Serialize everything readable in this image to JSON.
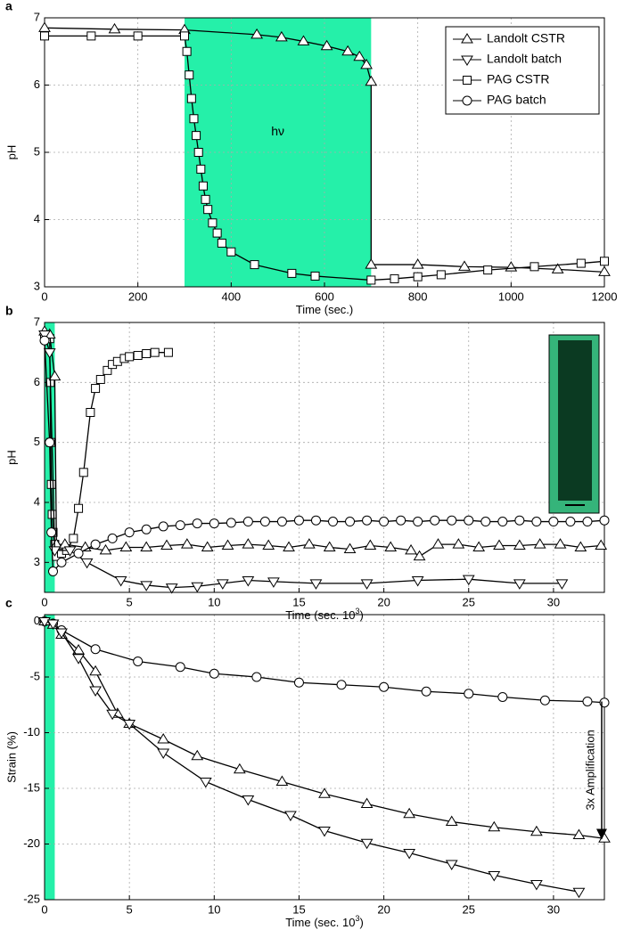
{
  "chart_data": [
    {
      "type": "line",
      "panel": "a",
      "xlabel": "Time (sec.)",
      "ylabel": "pH",
      "xlim": [
        0,
        1200
      ],
      "xticks": [
        0,
        200,
        400,
        600,
        800,
        1000,
        1200
      ],
      "ylim": [
        3,
        7
      ],
      "yticks": [
        3,
        4,
        5,
        6,
        7
      ],
      "grid": true,
      "band": [
        300,
        700
      ],
      "band_color": "#25f0a9",
      "annotation": {
        "text": "hν",
        "x": 500,
        "y": 5.3
      },
      "legend_position": "upper right",
      "legend": [
        {
          "name": "Landolt CSTR",
          "marker": "triangle-up"
        },
        {
          "name": "Landolt batch",
          "marker": "triangle-down"
        },
        {
          "name": "PAG CSTR",
          "marker": "square"
        },
        {
          "name": "PAG batch",
          "marker": "circle"
        }
      ],
      "series": [
        {
          "name": "Landolt CSTR",
          "marker": "triangle-up",
          "color": "#000",
          "x": [
            0,
            150,
            300,
            455,
            508,
            555,
            605,
            650,
            675,
            690,
            700,
            700,
            800,
            900,
            1000,
            1100,
            1200
          ],
          "values": [
            6.85,
            6.83,
            6.82,
            6.75,
            6.71,
            6.65,
            6.58,
            6.5,
            6.42,
            6.3,
            6.05,
            3.33,
            3.33,
            3.3,
            3.29,
            3.26,
            3.22
          ]
        },
        {
          "name": "PAG CSTR",
          "marker": "square",
          "color": "#000",
          "x": [
            0,
            100,
            200,
            300,
            305,
            310,
            315,
            320,
            325,
            330,
            335,
            340,
            345,
            350,
            360,
            370,
            380,
            400,
            450,
            530,
            580,
            700,
            750,
            800,
            850,
            950,
            1050,
            1150,
            1200
          ],
          "values": [
            6.73,
            6.73,
            6.73,
            6.73,
            6.5,
            6.15,
            5.8,
            5.5,
            5.25,
            5.0,
            4.75,
            4.5,
            4.3,
            4.15,
            3.95,
            3.8,
            3.65,
            3.52,
            3.33,
            3.2,
            3.16,
            3.1,
            3.12,
            3.15,
            3.18,
            3.25,
            3.3,
            3.35,
            3.38
          ]
        }
      ]
    },
    {
      "type": "line",
      "panel": "b",
      "xlabel": "Time (sec. 10",
      "xlabel_sup": "3",
      "xlabel_end": ")",
      "ylabel": "pH",
      "xlim": [
        0,
        33
      ],
      "xticks": [
        0,
        5,
        10,
        15,
        20,
        25,
        30
      ],
      "ylim": [
        2.5,
        7
      ],
      "yticks": [
        3,
        4,
        5,
        6,
        7
      ],
      "grid": true,
      "band": [
        0,
        0.6
      ],
      "band_color": "#25f0a9",
      "series": [
        {
          "name": "PAG CSTR",
          "marker": "square",
          "color": "#000",
          "x": [
            0,
            0.3,
            0.33,
            0.36,
            0.4,
            0.45,
            0.5,
            0.6,
            0.7,
            1.0,
            1.3,
            1.7,
            2.0,
            2.3,
            2.7,
            3.0,
            3.3,
            3.7,
            4.0,
            4.3,
            4.7,
            5.0,
            5.5,
            6.0,
            6.5,
            7.3
          ],
          "values": [
            6.73,
            6.73,
            6.0,
            5.0,
            4.3,
            3.8,
            3.5,
            3.3,
            3.1,
            3.15,
            3.2,
            3.4,
            3.9,
            4.5,
            5.5,
            5.9,
            6.05,
            6.2,
            6.3,
            6.35,
            6.4,
            6.43,
            6.45,
            6.48,
            6.5,
            6.5
          ]
        },
        {
          "name": "Landolt CSTR",
          "marker": "triangle-up",
          "color": "#000",
          "x": [
            0,
            0.3,
            0.6,
            0.7,
            1.2,
            2.4,
            3.6,
            4.8,
            6,
            7.2,
            8.4,
            9.6,
            10.8,
            12,
            13.2,
            14.4,
            15.6,
            16.8,
            18,
            19.2,
            20.4,
            21.6,
            22.1,
            23.2,
            24.4,
            25.6,
            26.8,
            28,
            29.2,
            30.4,
            31.6,
            32.8
          ],
          "values": [
            6.85,
            6.8,
            6.1,
            3.3,
            3.3,
            3.25,
            3.2,
            3.25,
            3.25,
            3.28,
            3.3,
            3.25,
            3.28,
            3.3,
            3.28,
            3.25,
            3.3,
            3.25,
            3.22,
            3.28,
            3.25,
            3.2,
            3.1,
            3.3,
            3.3,
            3.25,
            3.28,
            3.28,
            3.3,
            3.3,
            3.25,
            3.28
          ]
        },
        {
          "name": "Landolt batch",
          "marker": "triangle-down",
          "color": "#000",
          "x": [
            0,
            0.3,
            0.6,
            1.5,
            2.5,
            4.5,
            6,
            7.5,
            9,
            10.5,
            12,
            13.5,
            16,
            19,
            22,
            25,
            28,
            30.5
          ],
          "values": [
            6.8,
            6.5,
            3.2,
            3.2,
            3.0,
            2.7,
            2.62,
            2.58,
            2.6,
            2.65,
            2.7,
            2.68,
            2.65,
            2.65,
            2.7,
            2.72,
            2.65,
            2.65
          ]
        },
        {
          "name": "PAG batch",
          "marker": "circle",
          "color": "#000",
          "x": [
            0,
            0.3,
            0.4,
            0.5,
            1,
            2,
            3,
            4,
            5,
            6,
            7,
            8,
            9,
            10,
            11,
            12,
            13,
            14,
            15,
            16,
            17,
            18,
            19,
            20,
            21,
            22,
            23,
            24,
            25,
            26,
            27,
            28,
            29,
            30,
            31,
            32,
            33
          ],
          "values": [
            6.7,
            5.0,
            3.5,
            2.85,
            3.0,
            3.15,
            3.3,
            3.4,
            3.5,
            3.55,
            3.6,
            3.62,
            3.65,
            3.65,
            3.66,
            3.68,
            3.68,
            3.68,
            3.7,
            3.7,
            3.68,
            3.68,
            3.7,
            3.68,
            3.7,
            3.68,
            3.7,
            3.7,
            3.7,
            3.68,
            3.68,
            3.7,
            3.68,
            3.68,
            3.68,
            3.68,
            3.7
          ]
        }
      ]
    },
    {
      "type": "line",
      "panel": "c",
      "xlabel": "Time (sec. 10",
      "xlabel_sup": "3",
      "xlabel_end": ")",
      "ylabel": "Strain (%)",
      "xlim": [
        0,
        33
      ],
      "xticks": [
        0,
        5,
        10,
        15,
        20,
        25,
        30
      ],
      "ylim": [
        -25,
        0.6
      ],
      "yticks": [
        -25,
        -20,
        -15,
        -10,
        -5,
        0
      ],
      "grid": true,
      "band": [
        0,
        0.6
      ],
      "band_color": "#25f0a9",
      "annotation": {
        "text": "3x Amplification",
        "x": 32,
        "y_from": -7.2,
        "y_to": -19.5
      },
      "series": [
        {
          "name": "PAG batch",
          "marker": "circle",
          "color": "#000",
          "x": [
            0,
            0.5,
            1,
            3,
            5.5,
            8,
            10,
            12.5,
            15,
            17.5,
            20,
            22.5,
            25,
            27,
            29.5,
            32,
            33
          ],
          "values": [
            0,
            -0.2,
            -0.8,
            -2.5,
            -3.6,
            -4.1,
            -4.7,
            -5,
            -5.5,
            -5.7,
            -5.9,
            -6.3,
            -6.5,
            -6.8,
            -7.1,
            -7.2,
            -7.3
          ]
        },
        {
          "name": "Landolt CSTR",
          "marker": "triangle-up",
          "color": "#000",
          "x": [
            0,
            0.5,
            1,
            2,
            3,
            4.3,
            5,
            7,
            9,
            11.5,
            14,
            16.5,
            19,
            21.5,
            24,
            26.5,
            29,
            31.5,
            33
          ],
          "values": [
            0,
            -0.3,
            -1.2,
            -2.6,
            -4.5,
            -8.3,
            -9.2,
            -10.6,
            -12.1,
            -13.3,
            -14.4,
            -15.5,
            -16.4,
            -17.3,
            -18,
            -18.5,
            -18.9,
            -19.2,
            -19.5
          ]
        },
        {
          "name": "Landolt batch",
          "marker": "triangle-down",
          "color": "#000",
          "x": [
            0,
            0.5,
            1,
            2,
            3,
            4,
            5,
            7,
            9.5,
            12,
            14.5,
            16.5,
            19,
            21.5,
            24,
            26.5,
            29,
            31.5
          ],
          "values": [
            0,
            -0.2,
            -1,
            -3.3,
            -6.2,
            -8.3,
            -9.2,
            -11.8,
            -14.4,
            -16,
            -17.4,
            -18.8,
            -19.9,
            -20.8,
            -21.8,
            -22.8,
            -23.6,
            -24.3
          ]
        }
      ]
    }
  ]
}
